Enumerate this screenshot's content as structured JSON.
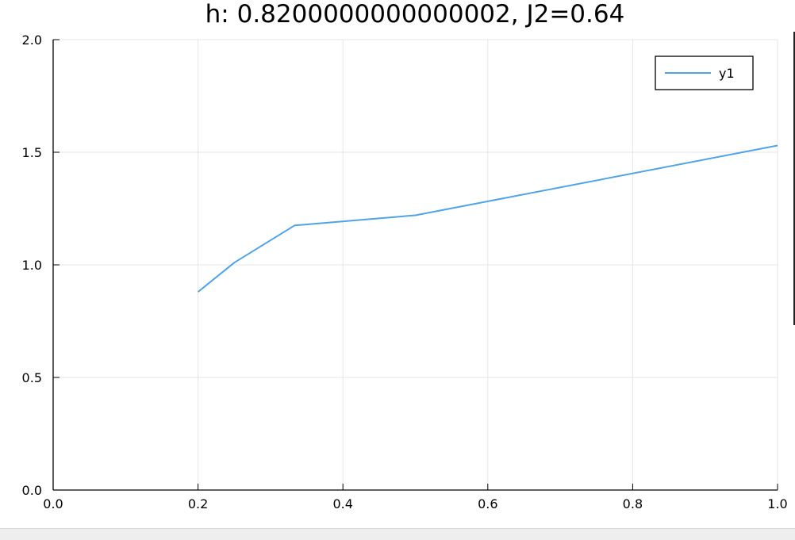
{
  "chart_data": {
    "type": "line",
    "title": "h: 0.8200000000000002, J2=0.64",
    "xlabel": "",
    "ylabel": "",
    "xlim": [
      0.0,
      1.0
    ],
    "ylim": [
      0.0,
      2.0
    ],
    "xticks": [
      0.0,
      0.2,
      0.4,
      0.6,
      0.8,
      1.0
    ],
    "yticks": [
      0.0,
      0.5,
      1.0,
      1.5,
      2.0
    ],
    "xtick_labels": [
      "0.0",
      "0.2",
      "0.4",
      "0.6",
      "0.8",
      "1.0"
    ],
    "ytick_labels": [
      "0.0",
      "0.5",
      "1.0",
      "1.5",
      "2.0"
    ],
    "grid": true,
    "legend_position": "top-right",
    "series": [
      {
        "name": "y1",
        "color": "#4fa3e8",
        "x": [
          0.2,
          0.25,
          0.3333,
          0.5,
          1.0
        ],
        "y": [
          0.88,
          1.01,
          1.175,
          1.22,
          1.53
        ]
      }
    ]
  }
}
